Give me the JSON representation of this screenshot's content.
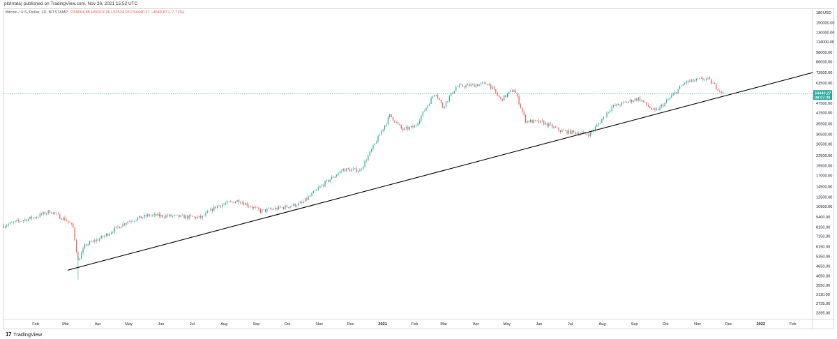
{
  "header": {
    "published": "plotrrata) published on TradingView.com, Nov 26, 2021 15:52 UTC"
  },
  "legend": {
    "symbol": "Bitcoin / U.S. Dollar, 1D, BITSTAMP",
    "ohlc": "O59004.88 H59207.36 L53524.03 C54440.27 −4549.87 (−7.71%)"
  },
  "footer": {
    "brand": "TradingView"
  },
  "chart_data": {
    "type": "candlestick",
    "symbol": "BTC/USD",
    "scale": "log",
    "currency": "USD",
    "x_ticks": [
      "Feb",
      "Mar",
      "Apr",
      "May",
      "Jun",
      "Jul",
      "Aug",
      "Sep",
      "Oct",
      "Nov",
      "Dec",
      "2021",
      "Feb",
      "Mar",
      "Apr",
      "May",
      "Jun",
      "Jul",
      "Aug",
      "Sep",
      "Oct",
      "Nov",
      "Dec",
      "2022",
      "Feb"
    ],
    "y_ticks": [
      2395,
      2735,
      3110,
      3550,
      4050,
      4650,
      5350,
      6150,
      7150,
      8150,
      9400,
      10900,
      12500,
      14500,
      17000,
      19500,
      22500,
      26500,
      30500,
      35500,
      41500,
      47500,
      54440.27,
      63500,
      73500,
      86000,
      98000,
      114000,
      130000,
      150000
    ],
    "y_tick_labels": [
      "2395.00",
      "2735.00",
      "3110.00",
      "3550.00",
      "4050.00",
      "4650.00",
      "5350.00",
      "6150.00",
      "7150.00",
      "8150.00",
      "9400.00",
      "10900.00",
      "12500.00",
      "14500.00",
      "17000.00",
      "19500.00",
      "22500.00",
      "26500.00",
      "30500.00",
      "35500.00",
      "41500.00",
      "47500.00",
      "54440.27",
      "63500.00",
      "73500.00",
      "86000.00",
      "98000.00",
      "114000.00",
      "130000.00",
      "150000.00"
    ],
    "y_top_label": "180",
    "y_unit": "USD",
    "last_price": {
      "value": 54440.27,
      "label": "54440.27",
      "countdown": "08:07:38"
    },
    "trendline": {
      "start": [
        "Mar 3, 2020",
        4400
      ],
      "end": [
        "Jan 2022",
        73500
      ]
    },
    "price_path": [
      [
        "2020-01-01",
        8300
      ],
      [
        "2020-01-15",
        8800
      ],
      [
        "2020-02-01",
        9400
      ],
      [
        "2020-02-15",
        10200
      ],
      [
        "2020-03-01",
        9000
      ],
      [
        "2020-03-08",
        8200
      ],
      [
        "2020-03-13",
        5000
      ],
      [
        "2020-03-20",
        6300
      ],
      [
        "2020-04-05",
        7000
      ],
      [
        "2020-04-29",
        8800
      ],
      [
        "2020-05-20",
        9600
      ],
      [
        "2020-06-10",
        9500
      ],
      [
        "2020-07-10",
        9300
      ],
      [
        "2020-07-25",
        11000
      ],
      [
        "2020-08-15",
        11900
      ],
      [
        "2020-09-05",
        10200
      ],
      [
        "2020-09-25",
        10700
      ],
      [
        "2020-10-15",
        11400
      ],
      [
        "2020-11-05",
        15000
      ],
      [
        "2020-11-24",
        18500
      ],
      [
        "2020-12-10",
        18200
      ],
      [
        "2020-12-20",
        23500
      ],
      [
        "2021-01-08",
        40000
      ],
      [
        "2021-01-20",
        32500
      ],
      [
        "2021-02-01",
        34000
      ],
      [
        "2021-02-21",
        56000
      ],
      [
        "2021-02-28",
        45000
      ],
      [
        "2021-03-13",
        60000
      ],
      [
        "2021-04-13",
        63000
      ],
      [
        "2021-04-25",
        50000
      ],
      [
        "2021-05-08",
        58000
      ],
      [
        "2021-05-19",
        37000
      ],
      [
        "2021-06-05",
        36000
      ],
      [
        "2021-06-22",
        32000
      ],
      [
        "2021-07-20",
        30500
      ],
      [
        "2021-08-10",
        45000
      ],
      [
        "2021-09-05",
        51000
      ],
      [
        "2021-09-21",
        42000
      ],
      [
        "2021-10-01",
        48000
      ],
      [
        "2021-10-20",
        64000
      ],
      [
        "2021-11-10",
        67500
      ],
      [
        "2021-11-26",
        54440
      ]
    ]
  },
  "colors": {
    "up": "#26a69a",
    "down": "#ef5350",
    "trendline": "#000000",
    "last_price_line": "#26a69a"
  }
}
